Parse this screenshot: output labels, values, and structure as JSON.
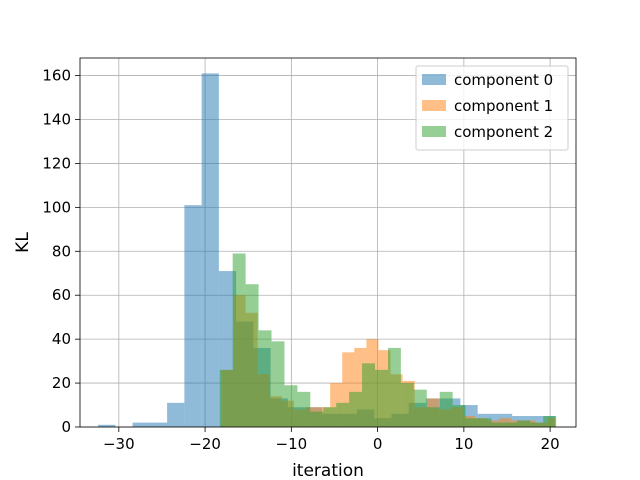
{
  "chart_data": {
    "type": "bar",
    "subtype": "histogram",
    "title": "",
    "xlabel": "iteration",
    "ylabel": "KL",
    "xlim": [
      -34.5,
      23
    ],
    "ylim": [
      0,
      168
    ],
    "xticks": [
      -30,
      -20,
      -10,
      0,
      10,
      20
    ],
    "yticks": [
      0,
      20,
      40,
      60,
      80,
      100,
      120,
      140,
      160
    ],
    "grid": true,
    "legend_position": "top-right",
    "series": [
      {
        "name": "component 0",
        "color": "#1f77b4",
        "opacity": 0.5,
        "bins": [
          {
            "x0": -32.4,
            "x1": -30.4,
            "count": 1
          },
          {
            "x0": -30.4,
            "x1": -28.4,
            "count": 0
          },
          {
            "x0": -28.4,
            "x1": -26.4,
            "count": 2
          },
          {
            "x0": -26.4,
            "x1": -24.4,
            "count": 2
          },
          {
            "x0": -24.4,
            "x1": -22.4,
            "count": 11
          },
          {
            "x0": -22.4,
            "x1": -20.4,
            "count": 101
          },
          {
            "x0": -20.4,
            "x1": -18.4,
            "count": 161
          },
          {
            "x0": -18.4,
            "x1": -16.4,
            "count": 71
          },
          {
            "x0": -16.4,
            "x1": -14.4,
            "count": 48
          },
          {
            "x0": -14.4,
            "x1": -12.4,
            "count": 36
          },
          {
            "x0": -12.4,
            "x1": -10.4,
            "count": 13
          },
          {
            "x0": -10.4,
            "x1": -8.4,
            "count": 9
          },
          {
            "x0": -8.4,
            "x1": -6.4,
            "count": 9
          },
          {
            "x0": -6.4,
            "x1": -4.4,
            "count": 6
          },
          {
            "x0": -4.4,
            "x1": -2.4,
            "count": 6
          },
          {
            "x0": -2.4,
            "x1": -0.4,
            "count": 8
          },
          {
            "x0": -0.4,
            "x1": 1.6,
            "count": 4
          },
          {
            "x0": 1.6,
            "x1": 3.6,
            "count": 6
          },
          {
            "x0": 3.6,
            "x1": 5.6,
            "count": 11
          },
          {
            "x0": 5.6,
            "x1": 7.6,
            "count": 13
          },
          {
            "x0": 7.6,
            "x1": 9.6,
            "count": 13
          },
          {
            "x0": 9.6,
            "x1": 11.6,
            "count": 10
          },
          {
            "x0": 11.6,
            "x1": 13.6,
            "count": 6
          },
          {
            "x0": 13.6,
            "x1": 15.6,
            "count": 6
          },
          {
            "x0": 15.6,
            "x1": 17.6,
            "count": 5
          },
          {
            "x0": 17.6,
            "x1": 19.6,
            "count": 5
          },
          {
            "x0": 19.6,
            "x1": 20.6,
            "count": 5
          }
        ]
      },
      {
        "name": "component 1",
        "color": "#ff7f0e",
        "opacity": 0.5,
        "bins": [
          {
            "x0": -18.1,
            "x1": -16.7,
            "count": 26
          },
          {
            "x0": -16.7,
            "x1": -15.3,
            "count": 60
          },
          {
            "x0": -15.3,
            "x1": -13.9,
            "count": 52
          },
          {
            "x0": -13.9,
            "x1": -12.5,
            "count": 24
          },
          {
            "x0": -12.5,
            "x1": -11.1,
            "count": 14
          },
          {
            "x0": -11.1,
            "x1": -9.7,
            "count": 12
          },
          {
            "x0": -9.7,
            "x1": -8.3,
            "count": 8
          },
          {
            "x0": -8.3,
            "x1": -6.9,
            "count": 9
          },
          {
            "x0": -6.9,
            "x1": -5.5,
            "count": 9
          },
          {
            "x0": -5.5,
            "x1": -4.1,
            "count": 20
          },
          {
            "x0": -4.1,
            "x1": -2.7,
            "count": 34
          },
          {
            "x0": -2.7,
            "x1": -1.3,
            "count": 36
          },
          {
            "x0": -1.3,
            "x1": 0.1,
            "count": 40
          },
          {
            "x0": 0.1,
            "x1": 1.5,
            "count": 35
          },
          {
            "x0": 1.5,
            "x1": 2.9,
            "count": 24
          },
          {
            "x0": 2.9,
            "x1": 4.3,
            "count": 21
          },
          {
            "x0": 4.3,
            "x1": 5.7,
            "count": 9
          },
          {
            "x0": 5.7,
            "x1": 7.1,
            "count": 13
          },
          {
            "x0": 7.1,
            "x1": 8.5,
            "count": 8
          },
          {
            "x0": 8.5,
            "x1": 9.9,
            "count": 9
          },
          {
            "x0": 9.9,
            "x1": 11.3,
            "count": 5
          },
          {
            "x0": 11.3,
            "x1": 12.7,
            "count": 4
          },
          {
            "x0": 12.7,
            "x1": 14.1,
            "count": 3
          },
          {
            "x0": 14.1,
            "x1": 15.5,
            "count": 4
          },
          {
            "x0": 15.5,
            "x1": 16.9,
            "count": 3
          },
          {
            "x0": 16.9,
            "x1": 18.3,
            "count": 3
          },
          {
            "x0": 18.3,
            "x1": 19.7,
            "count": 2
          },
          {
            "x0": 19.7,
            "x1": 20.6,
            "count": 4
          }
        ]
      },
      {
        "name": "component 2",
        "color": "#2ca02c",
        "opacity": 0.5,
        "bins": [
          {
            "x0": -18.3,
            "x1": -16.8,
            "count": 26
          },
          {
            "x0": -16.8,
            "x1": -15.3,
            "count": 79
          },
          {
            "x0": -15.3,
            "x1": -13.8,
            "count": 65
          },
          {
            "x0": -13.8,
            "x1": -12.3,
            "count": 44
          },
          {
            "x0": -12.3,
            "x1": -10.8,
            "count": 39
          },
          {
            "x0": -10.8,
            "x1": -9.3,
            "count": 19
          },
          {
            "x0": -9.3,
            "x1": -7.8,
            "count": 16
          },
          {
            "x0": -7.8,
            "x1": -6.3,
            "count": 7
          },
          {
            "x0": -6.3,
            "x1": -4.8,
            "count": 9
          },
          {
            "x0": -4.8,
            "x1": -3.3,
            "count": 11
          },
          {
            "x0": -3.3,
            "x1": -1.8,
            "count": 16
          },
          {
            "x0": -1.8,
            "x1": -0.3,
            "count": 29
          },
          {
            "x0": -0.3,
            "x1": 1.2,
            "count": 26
          },
          {
            "x0": 1.2,
            "x1": 2.7,
            "count": 36
          },
          {
            "x0": 2.7,
            "x1": 4.2,
            "count": 20
          },
          {
            "x0": 4.2,
            "x1": 5.7,
            "count": 17
          },
          {
            "x0": 5.7,
            "x1": 7.2,
            "count": 9
          },
          {
            "x0": 7.2,
            "x1": 8.7,
            "count": 16
          },
          {
            "x0": 8.7,
            "x1": 10.2,
            "count": 10
          },
          {
            "x0": 10.2,
            "x1": 11.7,
            "count": 4
          },
          {
            "x0": 11.7,
            "x1": 13.2,
            "count": 4
          },
          {
            "x0": 13.2,
            "x1": 14.7,
            "count": 2
          },
          {
            "x0": 14.7,
            "x1": 16.2,
            "count": 2
          },
          {
            "x0": 16.2,
            "x1": 17.7,
            "count": 3
          },
          {
            "x0": 17.7,
            "x1": 19.2,
            "count": 2
          },
          {
            "x0": 19.2,
            "x1": 20.7,
            "count": 5
          }
        ]
      }
    ]
  }
}
